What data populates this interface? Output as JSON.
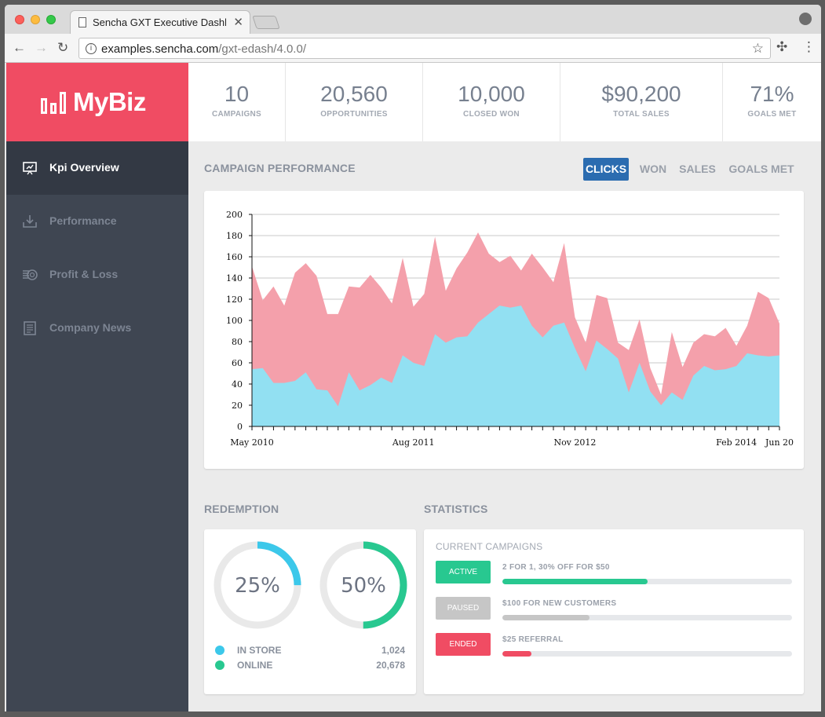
{
  "browser": {
    "tab_title": "Sencha GXT Executive Dashboard",
    "tab_close": "✕",
    "url_host": "examples.sencha.com",
    "url_path": "/gxt-edash/4.0.0/"
  },
  "app": {
    "logo_text": "MyBiz",
    "nav": [
      {
        "label": "Kpi Overview",
        "icon": "presentation-icon",
        "active": true
      },
      {
        "label": "Performance",
        "icon": "download-tray-icon",
        "active": false
      },
      {
        "label": "Profit & Loss",
        "icon": "coins-icon",
        "active": false
      },
      {
        "label": "Company News",
        "icon": "newspaper-icon",
        "active": false
      }
    ],
    "kpis": [
      {
        "value": "10",
        "label": "CAMPAIGNS"
      },
      {
        "value": "20,560",
        "label": "OPPORTUNITIES"
      },
      {
        "value": "10,000",
        "label": "CLOSED WON"
      },
      {
        "value": "$90,200",
        "label": "TOTAL SALES"
      },
      {
        "value": "71%",
        "label": "GOALS MET"
      }
    ],
    "campaign_title": "CAMPAIGN PERFORMANCE",
    "filters": [
      {
        "label": "CLICKS",
        "active": true
      },
      {
        "label": "WON",
        "active": false
      },
      {
        "label": "SALES",
        "active": false
      },
      {
        "label": "GOALS MET",
        "active": false
      }
    ],
    "redemption_title": "REDEMPTION",
    "redemption": {
      "donuts": [
        {
          "percent": 25,
          "label": "25%",
          "color": "#3cc8ea"
        },
        {
          "percent": 50,
          "label": "50%",
          "color": "#28c890"
        }
      ],
      "legend": [
        {
          "name": "IN STORE",
          "value": "1,024",
          "color": "#3cc8ea"
        },
        {
          "name": "ONLINE",
          "value": "20,678",
          "color": "#28c890"
        }
      ]
    },
    "statistics_title": "STATISTICS",
    "statistics": {
      "heading": "CURRENT CAMPAIGNS",
      "campaigns": [
        {
          "status": "ACTIVE",
          "name": "2 FOR 1, 30% OFF FOR $50",
          "progress": 0.5,
          "color": "#28c890"
        },
        {
          "status": "PAUSED",
          "name": "$100 FOR NEW CUSTOMERS",
          "progress": 0.3,
          "color": "#c6c6c6"
        },
        {
          "status": "ENDED",
          "name": "$25 REFERRAL",
          "progress": 0.1,
          "color": "#f04c63"
        }
      ]
    }
  },
  "chart_data": {
    "type": "area",
    "title": "CAMPAIGN PERFORMANCE",
    "xlabel": "",
    "ylabel": "",
    "ylim": [
      0,
      200
    ],
    "yticks": [
      0,
      20,
      40,
      60,
      80,
      100,
      120,
      140,
      160,
      180,
      200
    ],
    "x_tick_labels": [
      "May 2010",
      "Aug 2011",
      "Nov 2012",
      "Feb 2014",
      "Jun 20"
    ],
    "x_tick_label_index": [
      0,
      15,
      30,
      45,
      49
    ],
    "n_points": 50,
    "series": [
      {
        "name": "upper",
        "color": "#f4a0ab",
        "values": [
          151,
          119,
          132,
          114,
          145,
          154,
          142,
          106,
          106,
          132,
          131,
          143,
          131,
          116,
          159,
          113,
          125,
          179,
          128,
          149,
          164,
          183,
          163,
          155,
          161,
          147,
          163,
          150,
          136,
          173,
          103,
          79,
          124,
          121,
          79,
          72,
          101,
          55,
          30,
          89,
          56,
          79,
          87,
          85,
          93,
          76,
          95,
          127,
          121,
          97
        ]
      },
      {
        "name": "lower",
        "color": "#92e0f2",
        "values": [
          54,
          55,
          41,
          41,
          43,
          51,
          35,
          34,
          19,
          51,
          34,
          39,
          46,
          41,
          67,
          60,
          57,
          87,
          79,
          84,
          85,
          98,
          106,
          114,
          112,
          114,
          95,
          84,
          95,
          98,
          74,
          52,
          81,
          73,
          64,
          32,
          60,
          33,
          20,
          32,
          25,
          48,
          57,
          53,
          54,
          57,
          69,
          67,
          66,
          67
        ]
      }
    ]
  }
}
